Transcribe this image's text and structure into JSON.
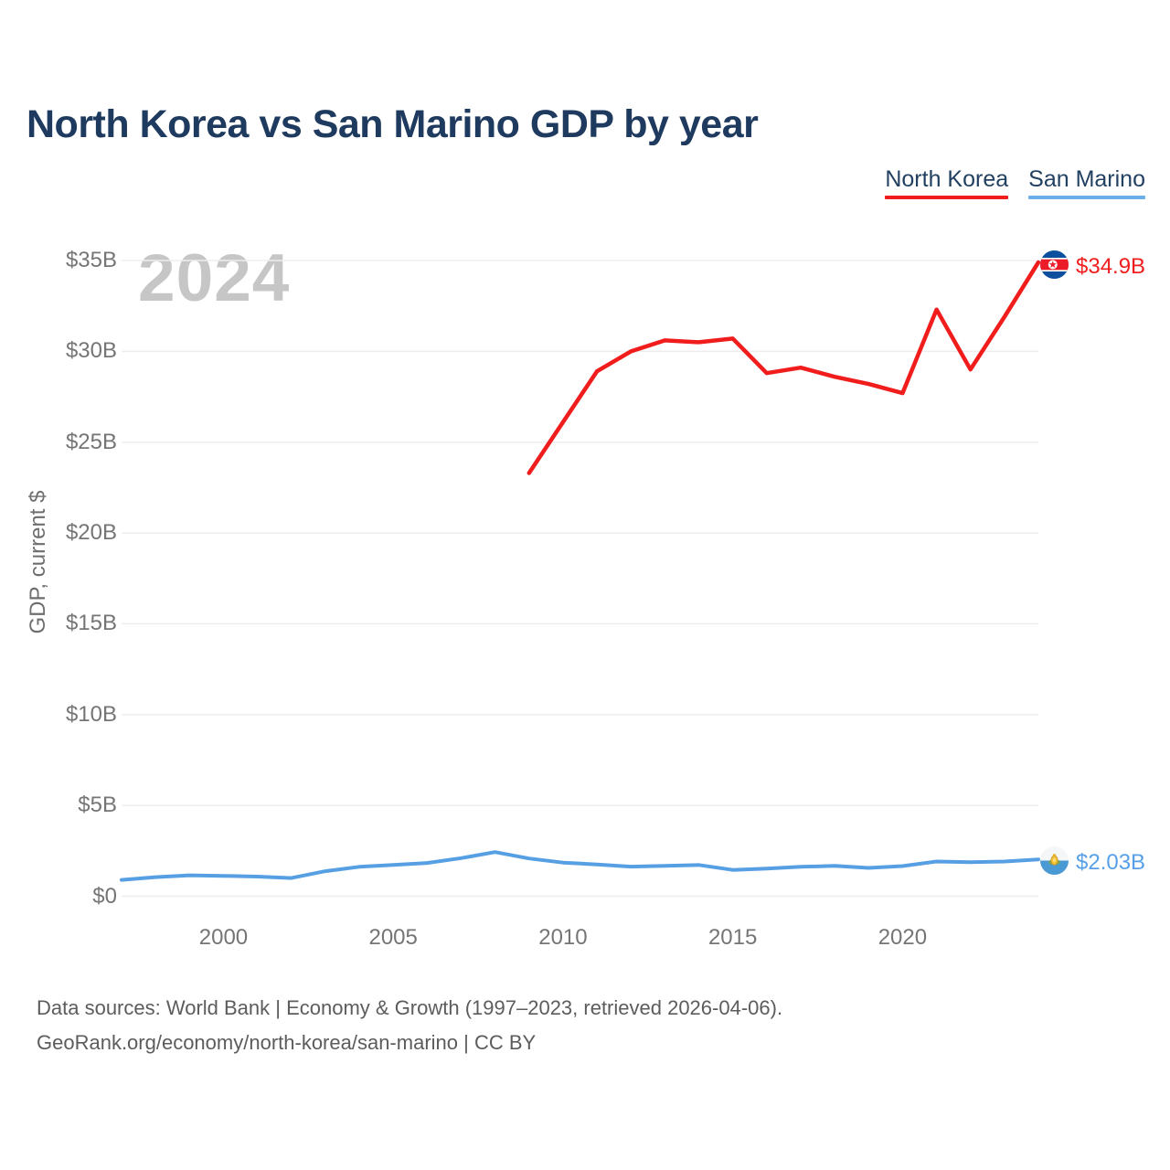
{
  "title": "North Korea vs San Marino GDP by year",
  "legend": {
    "north_korea": {
      "label": "North Korea",
      "color": "#f11c1c"
    },
    "san_marino": {
      "label": "San Marino",
      "color": "#6caee9"
    }
  },
  "watermark_year": "2024",
  "axes": {
    "y_title": "GDP, current $",
    "y_ticks": [
      {
        "value": 0,
        "label": "$0"
      },
      {
        "value": 5,
        "label": "$5B"
      },
      {
        "value": 10,
        "label": "$10B"
      },
      {
        "value": 15,
        "label": "$15B"
      },
      {
        "value": 20,
        "label": "$20B"
      },
      {
        "value": 25,
        "label": "$25B"
      },
      {
        "value": 30,
        "label": "$30B"
      },
      {
        "value": 35,
        "label": "$35B"
      }
    ],
    "x_ticks": [
      "2000",
      "2005",
      "2010",
      "2015",
      "2020"
    ]
  },
  "end_labels": {
    "north_korea": {
      "value": "$34.9B",
      "flag_icon": "north-korea-flag-icon"
    },
    "san_marino": {
      "value": "$2.03B",
      "flag_icon": "san-marino-flag-icon"
    }
  },
  "footer": {
    "line1": "Data sources: World Bank | Economy & Growth (1997–2023, retrieved 2026-04-06).",
    "line2": "GeoRank.org/economy/north-korea/san-marino | CC BY"
  },
  "colors": {
    "title_navy": "#1e3a5f",
    "legend_text": "#224061",
    "north_korea_red": "#f11c1c",
    "san_marino_blue": "#579fe3",
    "axis_text_gray": "#757575",
    "watermark_gray": "#c6c6c6",
    "gridline": "#ededed",
    "footer_gray": "#5c5c5c"
  },
  "chart_data": {
    "type": "line",
    "title": "North Korea vs San Marino GDP by year",
    "ylabel": "GDP, current $",
    "unit": "billion USD",
    "ylim_billions": [
      0,
      35
    ],
    "x_range": [
      1997,
      2024
    ],
    "grid": "horizontal",
    "legend_position": "top-right",
    "watermark": "2024",
    "series": [
      {
        "name": "North Korea",
        "color": "#f11c1c",
        "end_label": "$34.9B",
        "x": [
          2009,
          2010,
          2011,
          2012,
          2013,
          2014,
          2015,
          2016,
          2017,
          2018,
          2019,
          2020,
          2021,
          2022,
          2023,
          2024
        ],
        "values_billions": [
          23.3,
          26.1,
          28.9,
          30.0,
          30.6,
          30.5,
          30.7,
          28.8,
          29.1,
          28.6,
          28.2,
          27.7,
          32.3,
          29.0,
          31.9,
          34.9
        ]
      },
      {
        "name": "San Marino",
        "color": "#579fe3",
        "end_label": "$2.03B",
        "x": [
          1997,
          1998,
          1999,
          2000,
          2001,
          2002,
          2003,
          2004,
          2005,
          2006,
          2007,
          2008,
          2009,
          2010,
          2011,
          2012,
          2013,
          2014,
          2015,
          2016,
          2017,
          2018,
          2019,
          2020,
          2021,
          2022,
          2023,
          2024
        ],
        "values_billions": [
          0.9,
          1.05,
          1.15,
          1.12,
          1.08,
          1.0,
          1.38,
          1.62,
          1.72,
          1.83,
          2.1,
          2.43,
          2.08,
          1.85,
          1.75,
          1.63,
          1.67,
          1.72,
          1.45,
          1.52,
          1.62,
          1.67,
          1.56,
          1.66,
          1.91,
          1.87,
          1.91,
          2.03
        ]
      }
    ]
  }
}
